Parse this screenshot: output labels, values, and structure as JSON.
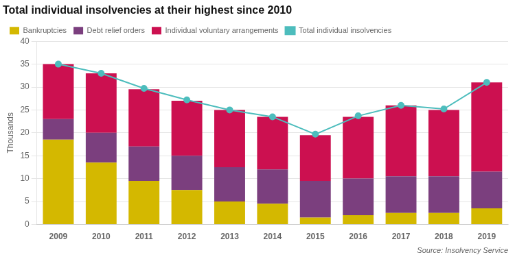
{
  "chart_data": {
    "type": "bar",
    "title": "Total individual insolvencies at their highest since 2010",
    "ylabel": "Thousands",
    "annotations": [
      "Source: Insolvency Service"
    ],
    "categories": [
      "2009",
      "2010",
      "2011",
      "2012",
      "2013",
      "2014",
      "2015",
      "2016",
      "2017",
      "2018",
      "2019"
    ],
    "series": [
      {
        "name": "Bankruptcies",
        "type": "bar",
        "color": "#d4b800",
        "values": [
          18.5,
          13.5,
          9.5,
          7.5,
          5.0,
          4.5,
          1.5,
          2.0,
          2.5,
          2.5,
          3.5
        ]
      },
      {
        "name": "Debt relief orders",
        "type": "bar",
        "color": "#7b3f7e",
        "values": [
          4.5,
          6.5,
          7.5,
          7.5,
          7.5,
          7.5,
          8.0,
          8.0,
          8.0,
          8.0,
          8.0
        ]
      },
      {
        "name": "Individual voluntary arrangements",
        "type": "bar",
        "color": "#cc1050",
        "values": [
          12.0,
          13.0,
          12.5,
          12.0,
          12.5,
          11.5,
          10.0,
          13.5,
          15.5,
          14.5,
          19.5
        ]
      },
      {
        "name": "Total individual insolvencies",
        "type": "line",
        "color": "#4dbdbd",
        "marker": "circle",
        "values": [
          35.0,
          33.0,
          29.7,
          27.2,
          25.0,
          23.5,
          19.7,
          23.7,
          26.0,
          25.2,
          31.0
        ]
      }
    ],
    "stacked": true,
    "ylim": [
      0,
      40
    ],
    "yticks": [
      0,
      5,
      10,
      15,
      20,
      25,
      30,
      35,
      40
    ],
    "grid": true,
    "legend": "top"
  }
}
